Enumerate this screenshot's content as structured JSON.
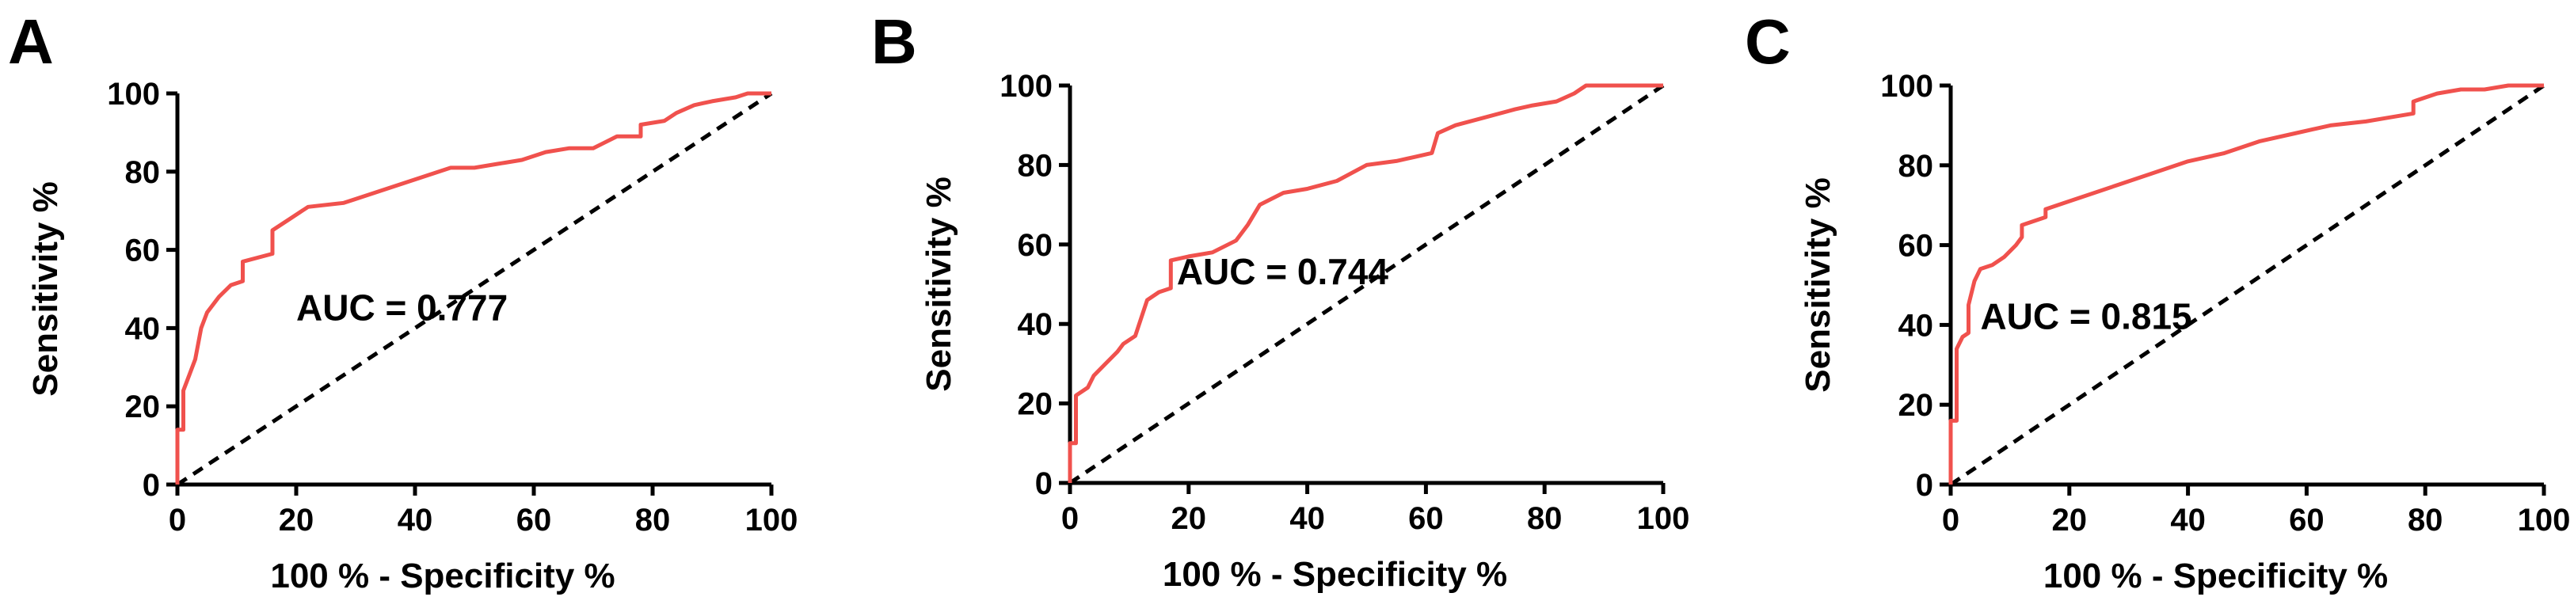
{
  "colors": {
    "roc": "#f0514d",
    "axis": "#000000",
    "reference": "#000000"
  },
  "chart_data": [
    {
      "type": "line",
      "panel_label": "A",
      "xlabel": "100 % - Specificity %",
      "ylabel": "Sensitivity %",
      "xlim": [
        0,
        100
      ],
      "ylim": [
        0,
        100
      ],
      "xticks": [
        "0",
        "20",
        "40",
        "60",
        "80",
        "100"
      ],
      "yticks": [
        "0",
        "20",
        "40",
        "60",
        "80",
        "100"
      ],
      "annotation": "AUC = 0.777",
      "reference_line": [
        [
          0,
          0
        ],
        [
          100,
          100
        ]
      ],
      "series": [
        {
          "x": [
            0,
            0,
            1,
            1,
            2,
            3,
            4,
            5,
            7,
            9,
            11,
            11,
            16,
            16,
            19,
            22,
            28,
            30,
            34,
            38,
            42,
            46,
            50,
            54,
            58,
            62,
            66,
            70,
            74,
            78,
            78,
            82,
            84,
            87,
            90,
            94,
            96,
            98,
            100
          ],
          "y": [
            0,
            14,
            14,
            24,
            28,
            32,
            40,
            44,
            48,
            51,
            52,
            57,
            59,
            65,
            68,
            71,
            72,
            73,
            75,
            77,
            79,
            81,
            81,
            82,
            83,
            85,
            86,
            86,
            89,
            89,
            92,
            93,
            95,
            97,
            98,
            99,
            100,
            100,
            100
          ]
        }
      ]
    },
    {
      "type": "line",
      "panel_label": "B",
      "xlabel": "100 % - Specificity %",
      "ylabel": "Sensitivity %",
      "xlim": [
        0,
        100
      ],
      "ylim": [
        0,
        100
      ],
      "xticks": [
        "0",
        "20",
        "40",
        "60",
        "80",
        "100"
      ],
      "yticks": [
        "0",
        "20",
        "40",
        "60",
        "80",
        "100"
      ],
      "annotation": "AUC = 0.744",
      "reference_line": [
        [
          0,
          0
        ],
        [
          100,
          100
        ]
      ],
      "series": [
        {
          "x": [
            0,
            0,
            1,
            1,
            3,
            4,
            6,
            8,
            9,
            11,
            13,
            15,
            17,
            17,
            20,
            24,
            28,
            30,
            32,
            36,
            40,
            45,
            50,
            55,
            58,
            61,
            62,
            65,
            70,
            75,
            78,
            82,
            85,
            86,
            87,
            90,
            95,
            100
          ],
          "y": [
            0,
            10,
            10,
            22,
            24,
            27,
            30,
            33,
            35,
            37,
            46,
            48,
            49,
            56,
            57,
            58,
            61,
            65,
            70,
            73,
            74,
            76,
            80,
            81,
            82,
            83,
            88,
            90,
            92,
            94,
            95,
            96,
            98,
            99,
            100,
            100,
            100,
            100
          ]
        }
      ]
    },
    {
      "type": "line",
      "panel_label": "C",
      "xlabel": "100 % - Specificity %",
      "ylabel": "Sensitivity %",
      "xlim": [
        0,
        100
      ],
      "ylim": [
        0,
        100
      ],
      "xticks": [
        "0",
        "20",
        "40",
        "60",
        "80",
        "100"
      ],
      "yticks": [
        "0",
        "20",
        "40",
        "60",
        "80",
        "100"
      ],
      "annotation": "AUC = 0.815",
      "reference_line": [
        [
          0,
          0
        ],
        [
          100,
          100
        ]
      ],
      "series": [
        {
          "x": [
            0,
            0,
            1,
            1,
            2,
            3,
            3,
            4,
            5,
            7,
            9,
            11,
            12,
            12,
            16,
            16,
            22,
            28,
            34,
            40,
            46,
            52,
            58,
            64,
            70,
            74,
            78,
            78,
            82,
            86,
            90,
            94,
            97,
            100
          ],
          "y": [
            0,
            16,
            16,
            34,
            37,
            38,
            45,
            51,
            54,
            55,
            57,
            60,
            62,
            65,
            67,
            69,
            72,
            75,
            78,
            81,
            83,
            86,
            88,
            90,
            91,
            92,
            93,
            96,
            98,
            99,
            99,
            100,
            100,
            100
          ]
        }
      ]
    }
  ]
}
